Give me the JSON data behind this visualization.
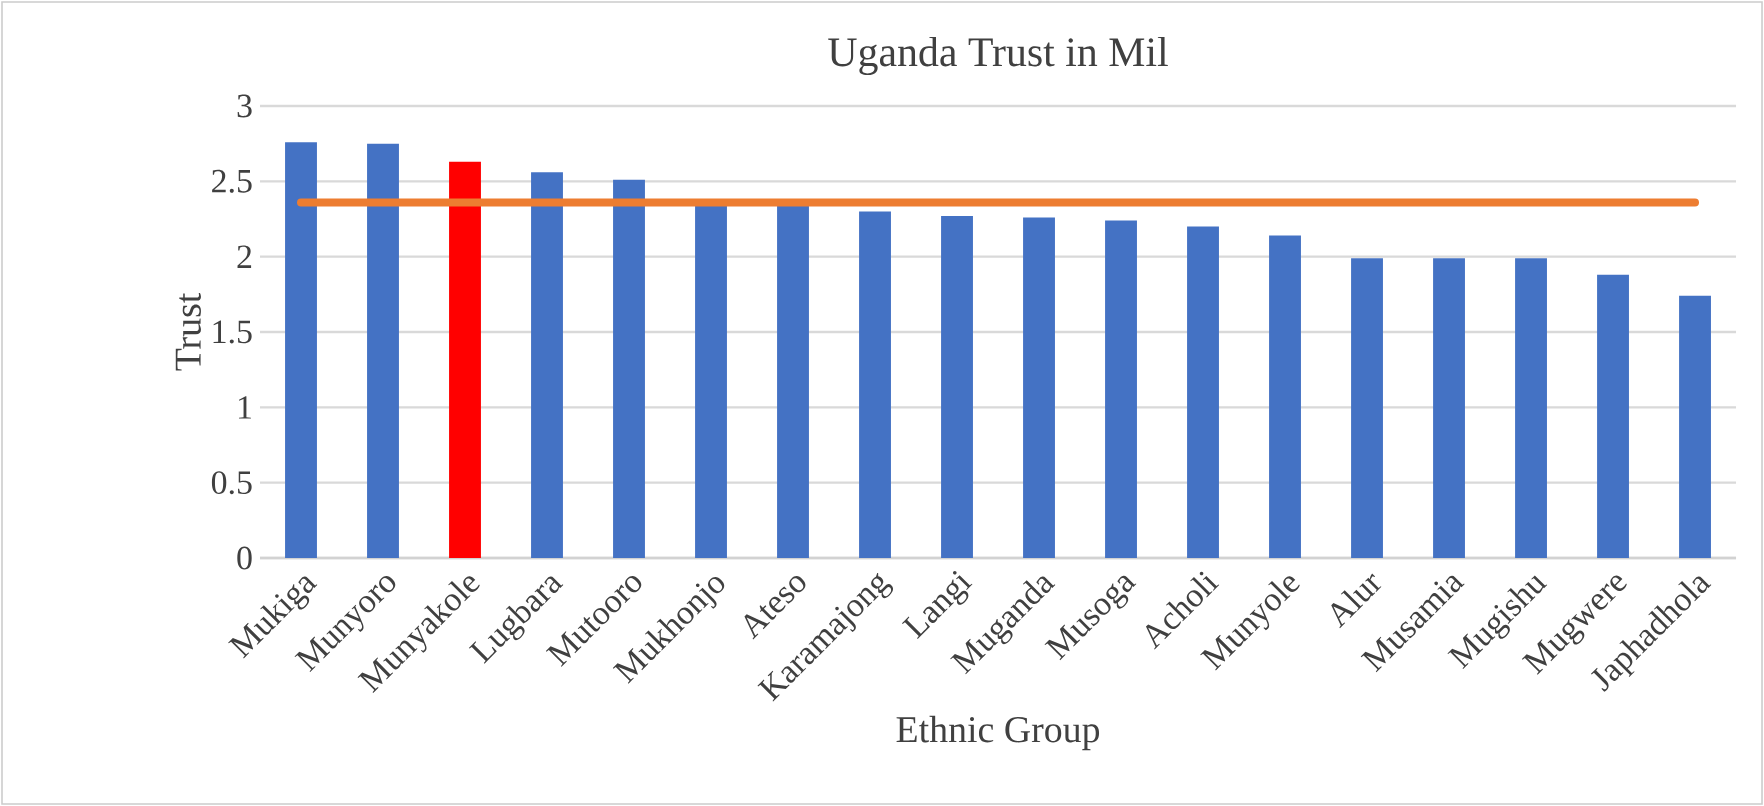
{
  "chart_data": {
    "type": "bar",
    "title": "Uganda Trust in Mil",
    "xlabel": "Ethnic Group",
    "ylabel": "Trust",
    "categories": [
      "Mukiga",
      "Munyoro",
      "Munyakole",
      "Lugbara",
      "Mutooro",
      "Mukhonjo",
      "Ateso",
      "Karamajong",
      "Langi",
      "Muganda",
      "Musoga",
      "Acholi",
      "Munyole",
      "Alur",
      "Musamia",
      "Mugishu",
      "Mugwere",
      "Japhadhola"
    ],
    "series": [
      {
        "values": [
          2.76,
          2.75,
          2.63,
          2.56,
          2.51,
          2.36,
          2.36,
          2.3,
          2.27,
          2.26,
          2.24,
          2.2,
          2.14,
          1.99,
          1.99,
          1.99,
          1.88,
          1.74
        ],
        "colors": [
          "#4472c4",
          "#4472c4",
          "#ff0000",
          "#4472c4",
          "#4472c4",
          "#4472c4",
          "#4472c4",
          "#4472c4",
          "#4472c4",
          "#4472c4",
          "#4472c4",
          "#4472c4",
          "#4472c4",
          "#4472c4",
          "#4472c4",
          "#4472c4",
          "#4472c4",
          "#4472c4"
        ]
      },
      {
        "type": "line",
        "color": "#ed7d31",
        "values": [
          2.36,
          2.36,
          2.36,
          2.36,
          2.36,
          2.36,
          2.36,
          2.36,
          2.36,
          2.36,
          2.36,
          2.36,
          2.36,
          2.36,
          2.36,
          2.36,
          2.36,
          2.36
        ]
      }
    ],
    "ylim": [
      0,
      3
    ],
    "yticks": [
      0,
      0.5,
      1,
      1.5,
      2,
      2.5,
      3
    ],
    "grid": "y"
  }
}
